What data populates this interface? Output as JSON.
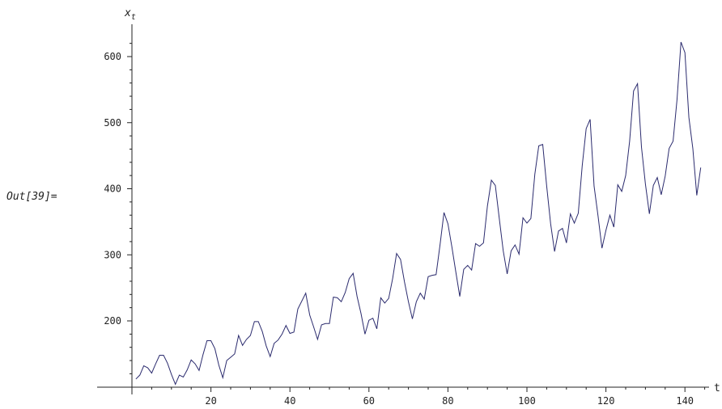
{
  "cell_label": "Out[39]=",
  "chart_data": {
    "type": "line",
    "title": "",
    "xlabel": "t",
    "ylabel": "x_t",
    "xlim": [
      0,
      145
    ],
    "ylim": [
      100,
      630
    ],
    "x_ticks": [
      20,
      40,
      60,
      80,
      100,
      120,
      140
    ],
    "y_ticks": [
      200,
      300,
      400,
      500,
      600
    ],
    "grid": false,
    "line_color": "#2b2b6e",
    "series": [
      {
        "values": [
          112,
          118,
          132,
          129,
          121,
          135,
          148,
          148,
          136,
          119,
          104,
          118,
          115,
          126,
          141,
          135,
          125,
          149,
          170,
          170,
          158,
          133,
          114,
          140,
          145,
          150,
          178,
          163,
          172,
          178,
          199,
          199,
          184,
          162,
          146,
          166,
          171,
          180,
          193,
          181,
          183,
          218,
          230,
          242,
          209,
          191,
          172,
          194,
          196,
          196,
          236,
          235,
          229,
          243,
          264,
          272,
          237,
          211,
          180,
          201,
          204,
          188,
          235,
          227,
          234,
          264,
          302,
          293,
          259,
          229,
          203,
          229,
          242,
          233,
          267,
          269,
          270,
          315,
          364,
          347,
          312,
          274,
          237,
          278,
          284,
          277,
          317,
          313,
          318,
          374,
          413,
          405,
          355,
          306,
          271,
          306,
          315,
          301,
          356,
          348,
          355,
          422,
          465,
          467,
          404,
          347,
          305,
          336,
          340,
          318,
          362,
          348,
          363,
          435,
          491,
          505,
          404,
          359,
          310,
          337,
          360,
          342,
          406,
          396,
          420,
          472,
          548,
          559,
          463,
          407,
          362,
          405,
          417,
          391,
          419,
          461,
          472,
          535,
          622,
          606,
          508,
          461,
          390,
          432
        ]
      }
    ]
  }
}
